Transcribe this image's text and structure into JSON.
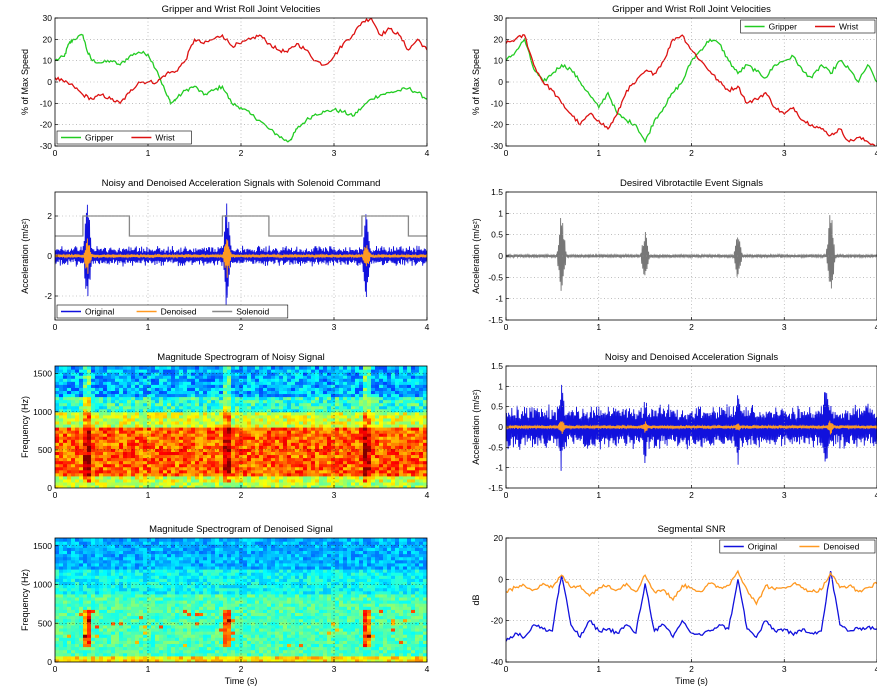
{
  "chart_data": [
    {
      "type": "line",
      "title": "Gripper and Wrist Roll Joint Velocities",
      "ylabel": "% of Max Speed",
      "xlabel": "",
      "xlim": [
        0,
        4
      ],
      "ylim": [
        -30,
        30
      ],
      "xticks": [
        "0",
        "1",
        "2",
        "3",
        "4"
      ],
      "yticks": [
        "30",
        "20",
        "10",
        "0",
        "-10",
        "-20",
        "-30"
      ],
      "grid": true,
      "legend_position": "lower-left",
      "series": [
        {
          "name": "Gripper",
          "color": "#22cc22",
          "x": [
            0,
            0.1,
            0.15,
            0.2,
            0.3,
            0.35,
            0.4,
            0.5,
            0.6,
            0.7,
            0.8,
            0.9,
            1.0,
            1.1,
            1.2,
            1.25,
            1.3,
            1.4,
            1.5,
            1.6,
            1.7,
            1.8,
            1.9,
            2.0,
            2.1,
            2.2,
            2.3,
            2.4,
            2.5,
            2.55,
            2.6,
            2.7,
            2.8,
            2.9,
            3.0,
            3.1,
            3.2,
            3.3,
            3.4,
            3.5,
            3.6,
            3.7,
            3.8,
            3.9,
            4.0
          ],
          "y": [
            10,
            12,
            18,
            20,
            22,
            14,
            10,
            9,
            10,
            8,
            12,
            14,
            13,
            5,
            -6,
            -10,
            -8,
            -4,
            -2,
            -6,
            -4,
            -2,
            -10,
            -12,
            -15,
            -18,
            -22,
            -25,
            -28,
            -26,
            -22,
            -18,
            -15,
            -14,
            -13,
            -14,
            -16,
            -12,
            -8,
            -6,
            -5,
            -4,
            -3,
            -5,
            -8
          ]
        },
        {
          "name": "Wrist",
          "color": "#dd1111",
          "x": [
            0,
            0.1,
            0.2,
            0.3,
            0.4,
            0.5,
            0.6,
            0.7,
            0.8,
            0.9,
            1.0,
            1.1,
            1.2,
            1.3,
            1.4,
            1.5,
            1.6,
            1.7,
            1.8,
            1.9,
            2.0,
            2.1,
            2.2,
            2.3,
            2.4,
            2.5,
            2.6,
            2.7,
            2.8,
            2.9,
            3.0,
            3.1,
            3.2,
            3.3,
            3.4,
            3.5,
            3.6,
            3.7,
            3.8,
            3.9,
            4.0
          ],
          "y": [
            2,
            0,
            -2,
            -6,
            -8,
            -6,
            -8,
            -10,
            -5,
            0,
            0,
            0,
            4,
            5,
            10,
            20,
            18,
            20,
            22,
            17,
            18,
            20,
            22,
            18,
            15,
            14,
            18,
            15,
            10,
            8,
            12,
            18,
            22,
            28,
            30,
            22,
            25,
            22,
            15,
            20,
            15
          ]
        }
      ]
    },
    {
      "type": "line",
      "title": "Gripper and Wrist Roll Joint Velocities",
      "ylabel": "% of Max Speed",
      "xlabel": "",
      "xlim": [
        0,
        4
      ],
      "ylim": [
        -30,
        30
      ],
      "xticks": [
        "0",
        "1",
        "2",
        "3",
        "4"
      ],
      "yticks": [
        "30",
        "20",
        "10",
        "0",
        "-10",
        "-20",
        "-30"
      ],
      "grid": true,
      "legend_position": "top-right",
      "series": [
        {
          "name": "Gripper",
          "color": "#22cc22",
          "x": [
            0,
            0.1,
            0.2,
            0.3,
            0.4,
            0.5,
            0.6,
            0.7,
            0.8,
            0.9,
            1.0,
            1.1,
            1.2,
            1.3,
            1.4,
            1.5,
            1.6,
            1.7,
            1.8,
            1.9,
            2.0,
            2.1,
            2.2,
            2.3,
            2.4,
            2.5,
            2.6,
            2.7,
            2.8,
            2.9,
            3.0,
            3.1,
            3.2,
            3.3,
            3.4,
            3.5,
            3.6,
            3.7,
            3.8,
            3.9,
            4.0
          ],
          "y": [
            10,
            14,
            20,
            6,
            0,
            4,
            8,
            6,
            0,
            -6,
            -12,
            -5,
            -15,
            -18,
            -20,
            -28,
            -18,
            -12,
            -5,
            0,
            10,
            15,
            20,
            18,
            10,
            4,
            8,
            5,
            2,
            8,
            10,
            12,
            5,
            2,
            8,
            4,
            10,
            6,
            0,
            8,
            0
          ]
        },
        {
          "name": "Wrist",
          "color": "#dd1111",
          "x": [
            0,
            0.1,
            0.2,
            0.3,
            0.4,
            0.5,
            0.6,
            0.7,
            0.8,
            0.9,
            1.0,
            1.1,
            1.2,
            1.3,
            1.4,
            1.5,
            1.6,
            1.7,
            1.8,
            1.9,
            2.0,
            2.1,
            2.2,
            2.3,
            2.4,
            2.5,
            2.6,
            2.7,
            2.8,
            2.9,
            3.0,
            3.1,
            3.2,
            3.3,
            3.4,
            3.5,
            3.6,
            3.7,
            3.8,
            3.9,
            4.0
          ],
          "y": [
            18,
            20,
            22,
            8,
            0,
            -4,
            -10,
            -15,
            -20,
            -15,
            -18,
            -22,
            -15,
            -4,
            0,
            5,
            4,
            10,
            20,
            22,
            15,
            10,
            5,
            0,
            -4,
            -2,
            -10,
            -8,
            -5,
            -12,
            -15,
            -12,
            -18,
            -20,
            -22,
            -25,
            -22,
            -28,
            -26,
            -28,
            -30
          ]
        }
      ]
    },
    {
      "type": "line",
      "title": "Noisy and Denoised Acceleration Signals with Solenoid Command",
      "ylabel": "Acceleration (m/s²)",
      "xlabel": "",
      "xlim": [
        0,
        4
      ],
      "ylim": [
        -3.2,
        3.2
      ],
      "xticks": [
        "0",
        "1",
        "2",
        "3",
        "4"
      ],
      "yticks": [
        "2",
        "0",
        "-2"
      ],
      "grid": true,
      "legend_position": "lower-left",
      "series": [
        {
          "name": "Original",
          "color": "#1111dd",
          "style": "noise",
          "noise_amplitude": 0.55,
          "spikes": [
            {
              "x": 0.35,
              "y": 3.2
            },
            {
              "x": 1.85,
              "y": 3.2
            },
            {
              "x": 3.35,
              "y": 3.0
            }
          ]
        },
        {
          "name": "Denoised",
          "color": "#ff9922",
          "style": "noise",
          "noise_amplitude": 0.1,
          "spikes": [
            {
              "x": 0.35,
              "y": 1.0
            },
            {
              "x": 1.85,
              "y": 1.2
            },
            {
              "x": 3.35,
              "y": 0.8
            }
          ]
        },
        {
          "name": "Solenoid",
          "color": "#888888",
          "x": [
            0,
            0.3,
            0.3,
            0.8,
            0.8,
            1.8,
            1.8,
            2.3,
            2.3,
            3.3,
            3.3,
            3.8,
            3.8,
            4.0
          ],
          "y": [
            1,
            1,
            2,
            2,
            1,
            1,
            2,
            2,
            1,
            1,
            2,
            2,
            1,
            1
          ]
        }
      ]
    },
    {
      "type": "line",
      "title": "Desired Vibrotactile Event Signals",
      "ylabel": "Acceleration (m/s²)",
      "xlabel": "",
      "xlim": [
        0,
        4
      ],
      "ylim": [
        -1.5,
        1.5
      ],
      "xticks": [
        "0",
        "1",
        "2",
        "3",
        "4"
      ],
      "yticks": [
        "1.5",
        "1",
        "0.5",
        "0",
        "-0.5",
        "-1",
        "-1.5"
      ],
      "grid": true,
      "series": [
        {
          "name": "",
          "color": "#777777",
          "style": "noise",
          "noise_amplitude": 0.04,
          "spikes": [
            {
              "x": 0.6,
              "y": 1.3
            },
            {
              "x": 1.5,
              "y": 0.7
            },
            {
              "x": 2.5,
              "y": 0.6
            },
            {
              "x": 3.5,
              "y": 1.2
            }
          ]
        }
      ]
    },
    {
      "type": "heatmap",
      "title": "Magnitude Spectrogram of Noisy Signal",
      "ylabel": "Frequency (Hz)",
      "xlabel": "",
      "xlim": [
        0,
        4
      ],
      "ylim": [
        0,
        1600
      ],
      "xticks": [
        "0",
        "1",
        "2",
        "3",
        "4"
      ],
      "yticks": [
        "1500",
        "1000",
        "500",
        "0"
      ],
      "grid": true,
      "colormap": "jet",
      "hot_band_hz": [
        150,
        800
      ],
      "events_s": [
        0.35,
        1.85,
        3.35
      ]
    },
    {
      "type": "line",
      "title": "Noisy and Denoised Acceleration Signals",
      "ylabel": "Acceleration (m/s²)",
      "xlabel": "",
      "xlim": [
        0,
        4
      ],
      "ylim": [
        -1.5,
        1.5
      ],
      "xticks": [
        "0",
        "1",
        "2",
        "3",
        "4"
      ],
      "yticks": [
        "1.5",
        "1",
        "0.5",
        "0",
        "-0.5",
        "-1",
        "-1.5"
      ],
      "grid": true,
      "series": [
        {
          "name": "Original",
          "color": "#1111dd",
          "style": "noise",
          "noise_amplitude": 0.6,
          "spikes": [
            {
              "x": 0.6,
              "y": 1.3
            },
            {
              "x": 1.5,
              "y": 1.0
            },
            {
              "x": 2.5,
              "y": 1.0
            },
            {
              "x": 3.45,
              "y": 1.5
            }
          ]
        },
        {
          "name": "Denoised",
          "color": "#ff9922",
          "style": "noise",
          "noise_amplitude": 0.05,
          "spikes": [
            {
              "x": 0.6,
              "y": 0.2
            },
            {
              "x": 1.5,
              "y": 0.15
            },
            {
              "x": 2.5,
              "y": 0.12
            },
            {
              "x": 3.5,
              "y": 0.2
            }
          ]
        }
      ]
    },
    {
      "type": "heatmap",
      "title": "Magnitude Spectrogram of Denoised Signal",
      "ylabel": "Frequency (Hz)",
      "xlabel": "Time (s)",
      "xlim": [
        0,
        4
      ],
      "ylim": [
        0,
        1600
      ],
      "xticks": [
        "0",
        "1",
        "2",
        "3",
        "4"
      ],
      "yticks": [
        "1500",
        "1000",
        "500",
        "0"
      ],
      "grid": true,
      "colormap": "jet",
      "hot_band_hz": [
        200,
        700
      ],
      "events_s": [
        0.35,
        1.85,
        3.35
      ]
    },
    {
      "type": "line",
      "title": "Segmental SNR",
      "ylabel": "dB",
      "xlabel": "Time (s)",
      "xlim": [
        0,
        4
      ],
      "ylim": [
        -40,
        20
      ],
      "xticks": [
        "0",
        "1",
        "2",
        "3",
        "4"
      ],
      "yticks": [
        "20",
        "0",
        "-20",
        "-40"
      ],
      "grid": true,
      "legend_position": "top-right",
      "series": [
        {
          "name": "Original",
          "color": "#1111dd",
          "x": [
            0,
            0.1,
            0.2,
            0.3,
            0.4,
            0.5,
            0.55,
            0.6,
            0.7,
            0.8,
            0.9,
            1.0,
            1.1,
            1.2,
            1.3,
            1.4,
            1.5,
            1.6,
            1.7,
            1.8,
            1.9,
            2.0,
            2.1,
            2.2,
            2.3,
            2.4,
            2.5,
            2.6,
            2.7,
            2.8,
            2.9,
            3.0,
            3.1,
            3.2,
            3.3,
            3.4,
            3.5,
            3.6,
            3.7,
            3.8,
            3.9,
            4.0
          ],
          "y": [
            -30,
            -26,
            -28,
            -22,
            -24,
            -25,
            -10,
            2,
            -22,
            -28,
            -20,
            -25,
            -24,
            -26,
            -22,
            -26,
            -2,
            -25,
            -22,
            -28,
            -20,
            -26,
            -27,
            -25,
            -22,
            -24,
            0,
            -24,
            -28,
            -20,
            -25,
            -24,
            -27,
            -24,
            -26,
            -25,
            4,
            -22,
            -25,
            -24,
            -23,
            -24
          ]
        },
        {
          "name": "Denoised",
          "color": "#ff9922",
          "x": [
            0,
            0.1,
            0.2,
            0.3,
            0.4,
            0.5,
            0.6,
            0.7,
            0.8,
            0.9,
            1.0,
            1.1,
            1.2,
            1.3,
            1.4,
            1.5,
            1.6,
            1.7,
            1.8,
            1.9,
            2.0,
            2.1,
            2.2,
            2.3,
            2.4,
            2.5,
            2.6,
            2.7,
            2.8,
            2.9,
            3.0,
            3.1,
            3.2,
            3.3,
            3.4,
            3.5,
            3.6,
            3.7,
            3.8,
            3.9,
            4.0
          ],
          "y": [
            -6,
            -4,
            -3,
            -5,
            -2,
            -4,
            2,
            -4,
            -3,
            -8,
            -4,
            -3,
            -5,
            -2,
            -6,
            2,
            -6,
            -5,
            -10,
            -3,
            -4,
            -6,
            -2,
            -4,
            -3,
            4,
            -5,
            -12,
            -3,
            -5,
            -4,
            -2,
            -4,
            -6,
            -5,
            3,
            -4,
            -3,
            -6,
            -4,
            -2
          ]
        }
      ]
    }
  ]
}
